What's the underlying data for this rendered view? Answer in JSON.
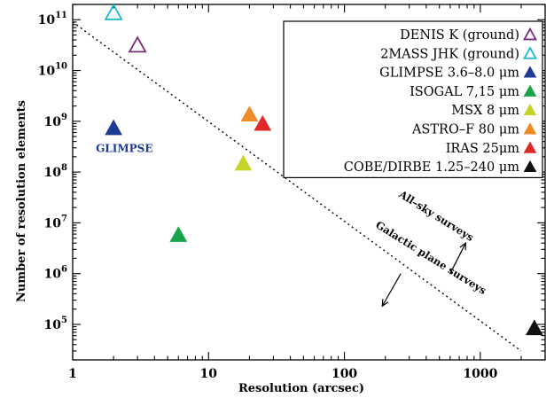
{
  "chart_data": {
    "type": "scatter",
    "xlabel": "Resolution (arcsec)",
    "ylabel": "Number of resolution elements",
    "xscale": "log",
    "yscale": "log",
    "xlim": [
      1,
      3000
    ],
    "ylim": [
      20000,
      200000000000
    ],
    "x_ticks": [
      {
        "value": 1,
        "label": "1"
      },
      {
        "value": 10,
        "label": "10"
      },
      {
        "value": 100,
        "label": "100"
      },
      {
        "value": 1000,
        "label": "1000"
      }
    ],
    "y_ticks": [
      {
        "value": 100000,
        "mantissa": "10",
        "exp": "5"
      },
      {
        "value": 1000000,
        "mantissa": "10",
        "exp": "6"
      },
      {
        "value": 10000000,
        "mantissa": "10",
        "exp": "7"
      },
      {
        "value": 100000000,
        "mantissa": "10",
        "exp": "8"
      },
      {
        "value": 1000000000,
        "mantissa": "10",
        "exp": "9"
      },
      {
        "value": 10000000000,
        "mantissa": "10",
        "exp": "10"
      },
      {
        "value": 100000000000,
        "mantissa": "10",
        "exp": "11"
      }
    ],
    "series": [
      {
        "name": "DENIS K (ground)",
        "marker": "open-triangle",
        "color": "#7a2a7a",
        "points": [
          {
            "x": 3,
            "y": 30000000000
          }
        ]
      },
      {
        "name": "2MASS JHK (ground)",
        "marker": "open-triangle",
        "color": "#19b5d8",
        "points": [
          {
            "x": 2,
            "y": 130000000000
          }
        ]
      },
      {
        "name": "GLIMPSE 3.6–8.0 μm",
        "marker": "filled-triangle",
        "color": "#1f3a93",
        "points": [
          {
            "x": 2,
            "y": 700000000
          }
        ]
      },
      {
        "name": "ISOGAL 7,15 μm",
        "marker": "filled-triangle",
        "color": "#16a34a",
        "points": [
          {
            "x": 6,
            "y": 5500000
          }
        ]
      },
      {
        "name": "MSX 8 μm",
        "marker": "filled-triangle",
        "color": "#c6d32a",
        "points": [
          {
            "x": 18,
            "y": 140000000
          }
        ]
      },
      {
        "name": "ASTRO–F 80 μm",
        "marker": "filled-triangle",
        "color": "#f08a24",
        "points": [
          {
            "x": 20,
            "y": 1300000000
          }
        ]
      },
      {
        "name": "IRAS 25μm",
        "marker": "filled-triangle",
        "color": "#e02828",
        "points": [
          {
            "x": 25,
            "y": 850000000
          }
        ]
      },
      {
        "name": "COBE/DIRBE 1.25–240 μm",
        "marker": "filled-triangle",
        "color": "#111111",
        "points": [
          {
            "x": 2500,
            "y": 80000
          }
        ]
      }
    ],
    "divider_line": {
      "style": "dotted",
      "points": [
        {
          "x": 1,
          "y": 90000000000
        },
        {
          "x": 2000,
          "y": 30000
        }
      ]
    },
    "annotations": [
      {
        "text": "GLIMPSE",
        "x": 2.4,
        "y": 250000000,
        "color": "#1f3a93"
      },
      {
        "text": "All–sky surveys",
        "x": 460,
        "y": 12000000,
        "rotate": 32
      },
      {
        "text": "Galactic plane surveys",
        "x": 420,
        "y": 1800000,
        "rotate": 32
      }
    ],
    "arrows": [
      {
        "from": {
          "x": 600,
          "y": 1000000
        },
        "to": {
          "x": 780,
          "y": 4000000
        }
      },
      {
        "from": {
          "x": 260,
          "y": 1000000
        },
        "to": {
          "x": 190,
          "y": 230000
        }
      }
    ],
    "legend": {
      "placement": "top-right"
    }
  }
}
